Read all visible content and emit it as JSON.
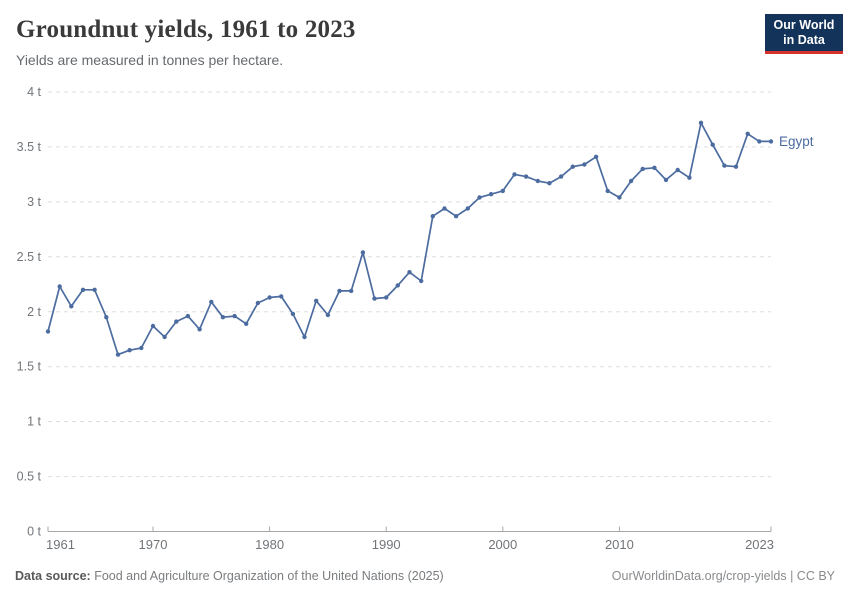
{
  "header": {
    "title": "Groundnut yields, 1961 to 2023",
    "subtitle": "Yields are measured in tonnes per hectare.",
    "logo_line1": "Our World",
    "logo_line2": "in Data"
  },
  "footer": {
    "source_label": "Data source:",
    "source_text": " Food and Agriculture Organization of the United Nations (2025)",
    "link_text": "OurWorldinData.org/crop-yields | CC BY"
  },
  "colors": {
    "series": "#4C6CA0",
    "grid": "#dddddd",
    "axis": "#a8a8a8",
    "tick_label": "#717579",
    "logo_bg": "#13335a",
    "logo_red": "#d7332c"
  },
  "chart_data": {
    "type": "line",
    "title": "Groundnut yields, 1961 to 2023",
    "subtitle": "Yields are measured in tonnes per hectare.",
    "xlabel": "",
    "ylabel": "tonnes per hectare",
    "xlim": [
      1961,
      2023
    ],
    "ylim": [
      0,
      4
    ],
    "xticks": [
      1961,
      1970,
      1980,
      1990,
      2000,
      2010,
      2023
    ],
    "yticks": [
      0,
      0.5,
      1,
      1.5,
      2,
      2.5,
      3,
      3.5,
      4
    ],
    "ytick_suffix": " t",
    "grid": true,
    "legend_position": "end-of-line",
    "series": [
      {
        "name": "Egypt",
        "x": [
          1961,
          1962,
          1963,
          1964,
          1965,
          1966,
          1967,
          1968,
          1969,
          1970,
          1971,
          1972,
          1973,
          1974,
          1975,
          1976,
          1977,
          1978,
          1979,
          1980,
          1981,
          1982,
          1983,
          1984,
          1985,
          1986,
          1987,
          1988,
          1989,
          1990,
          1991,
          1992,
          1993,
          1994,
          1995,
          1996,
          1997,
          1998,
          1999,
          2000,
          2001,
          2002,
          2003,
          2004,
          2005,
          2006,
          2007,
          2008,
          2009,
          2010,
          2011,
          2012,
          2013,
          2014,
          2015,
          2016,
          2017,
          2018,
          2019,
          2020,
          2021,
          2022,
          2023
        ],
        "values": [
          1.82,
          2.23,
          2.05,
          2.2,
          2.2,
          1.95,
          1.61,
          1.65,
          1.67,
          1.87,
          1.77,
          1.91,
          1.96,
          1.84,
          2.09,
          1.95,
          1.96,
          1.89,
          2.08,
          2.13,
          2.14,
          1.98,
          1.77,
          2.1,
          1.97,
          2.19,
          2.19,
          2.54,
          2.12,
          2.13,
          2.24,
          2.36,
          2.28,
          2.87,
          2.94,
          2.87,
          2.94,
          3.04,
          3.07,
          3.1,
          3.25,
          3.23,
          3.19,
          3.17,
          3.23,
          3.32,
          3.34,
          3.41,
          3.1,
          3.04,
          3.19,
          3.3,
          3.31,
          3.2,
          3.29,
          3.22,
          3.72,
          3.52,
          3.33,
          3.32,
          3.62,
          3.55,
          3.55
        ]
      }
    ]
  }
}
